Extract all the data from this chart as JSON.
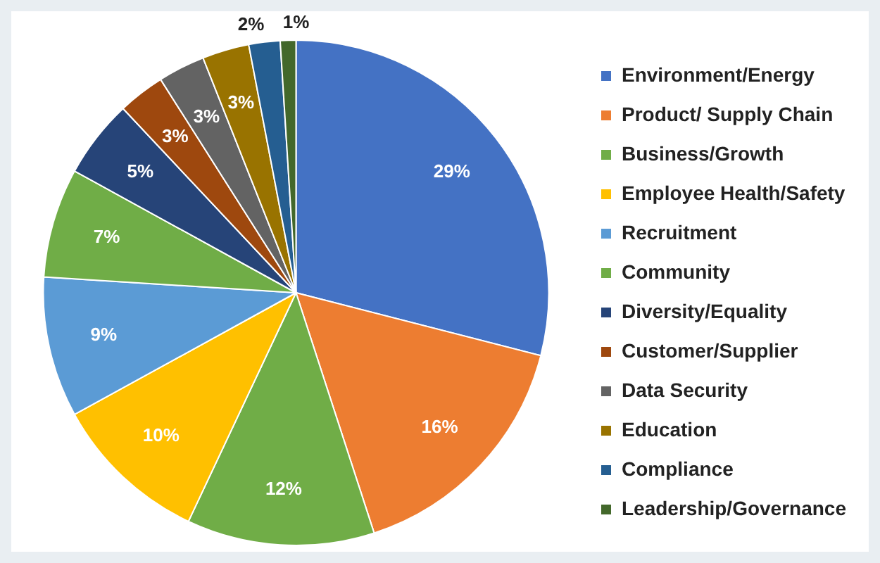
{
  "chart_data": {
    "type": "pie",
    "categories": [
      "Environment/Energy",
      "Product/ Supply Chain",
      "Business/Growth",
      "Employee Health/Safety",
      "Recruitment",
      "Community",
      "Diversity/Equality",
      "Customer/Supplier",
      "Data Security",
      "Education",
      "Compliance",
      "Leadership/Governance"
    ],
    "values": [
      29,
      16,
      12,
      10,
      9,
      7,
      5,
      3,
      3,
      3,
      2,
      1
    ],
    "value_labels": [
      "29%",
      "16%",
      "12%",
      "10%",
      "9%",
      "7%",
      "5%",
      "3%",
      "3%",
      "3%",
      "2%",
      "1%"
    ],
    "colors": [
      "#4472c4",
      "#ed7d31",
      "#70ad47",
      "#ffc000",
      "#5b9bd5",
      "#70ad47",
      "#264478",
      "#9e480e",
      "#636363",
      "#997300",
      "#255e91",
      "#43682b"
    ],
    "legend": "right"
  }
}
